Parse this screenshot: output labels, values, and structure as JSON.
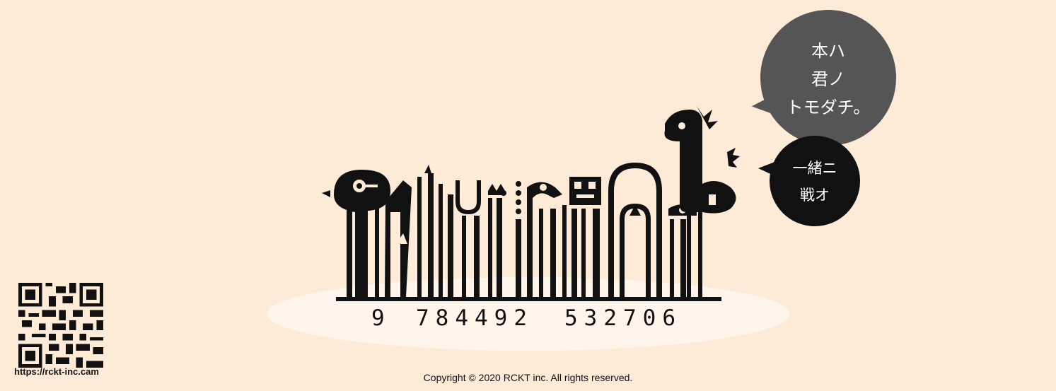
{
  "speech": {
    "big_lines": [
      "本ハ",
      "君ノ",
      "トモダチ。"
    ],
    "small_lines": [
      "一緒ニ",
      "戦オ"
    ]
  },
  "barcode": {
    "first_digit": "9",
    "group1": "784492",
    "group2": "532706"
  },
  "footer": {
    "qr_url": "https://rckt-inc.cam",
    "copyright": "Copyright © 2020 RCKT inc. All rights reserved."
  },
  "colors": {
    "background": "#fdebd8",
    "platform": "#fff5ea",
    "bubble_big": "#555555",
    "bubble_small": "#111111",
    "ink": "#111111"
  }
}
